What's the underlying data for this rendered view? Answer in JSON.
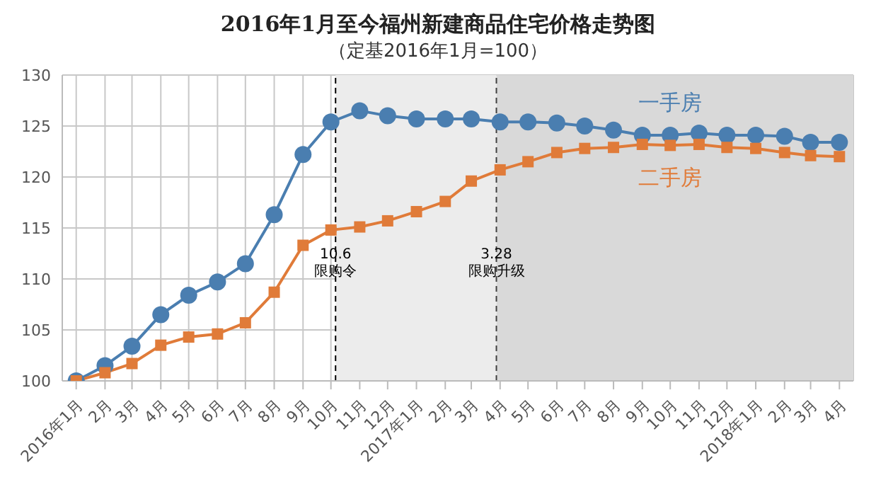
{
  "chart_data": {
    "type": "line",
    "title": "2016年1月至今福州新建商品住宅价格走势图",
    "subtitle": "（定基2016年1月=100）",
    "x": [
      "2016-01",
      "2016-02",
      "2016-03",
      "2016-04",
      "2016-05",
      "2016-06",
      "2016-07",
      "2016-08",
      "2016-09",
      "2016-10",
      "2016-11",
      "2016-12",
      "2017-01",
      "2017-02",
      "2017-03",
      "2017-04",
      "2017-05",
      "2017-06",
      "2017-07",
      "2017-08",
      "2017-09",
      "2017-10",
      "2017-11",
      "2017-12",
      "2018-01",
      "2018-02",
      "2018-03",
      "2018-04"
    ],
    "series": [
      {
        "name": "一手房",
        "color": "#4a7eb0",
        "marker": "circle",
        "values": [
          100,
          101.5,
          103.4,
          106.5,
          108.4,
          109.7,
          111.5,
          116.3,
          122.2,
          125.4,
          126.5,
          126.0,
          125.7,
          125.7,
          125.7,
          125.4,
          125.4,
          125.3,
          125.0,
          124.6,
          124.1,
          124.1,
          124.3,
          124.1,
          124.1,
          124.0,
          123.4,
          123.4
        ]
      },
      {
        "name": "二手房",
        "color": "#e07b39",
        "marker": "square",
        "values": [
          100,
          100.8,
          101.7,
          103.5,
          104.3,
          104.6,
          105.7,
          108.7,
          113.3,
          114.8,
          115.1,
          115.7,
          116.6,
          117.6,
          119.6,
          120.7,
          121.5,
          122.4,
          122.8,
          122.9,
          123.2,
          123.1,
          123.2,
          122.9,
          122.8,
          122.4,
          122.1,
          122.0
        ]
      }
    ],
    "xlim": [
      "2015-12-17",
      "2018-04-16"
    ],
    "xticks": [
      {
        "value": "2016-01",
        "label": "2016年1月"
      },
      {
        "value": "2016-02",
        "label": "2月"
      },
      {
        "value": "2016-03",
        "label": "3月"
      },
      {
        "value": "2016-04",
        "label": "4月"
      },
      {
        "value": "2016-05",
        "label": "5月"
      },
      {
        "value": "2016-06",
        "label": "6月"
      },
      {
        "value": "2016-07",
        "label": "7月"
      },
      {
        "value": "2016-08",
        "label": "8月"
      },
      {
        "value": "2016-09",
        "label": "9月"
      },
      {
        "value": "2016-10",
        "label": "10月"
      },
      {
        "value": "2016-11",
        "label": "11月"
      },
      {
        "value": "2016-12",
        "label": "12月"
      },
      {
        "value": "2017-01",
        "label": "2017年1月"
      },
      {
        "value": "2017-02",
        "label": "2月"
      },
      {
        "value": "2017-03",
        "label": "3月"
      },
      {
        "value": "2017-04",
        "label": "4月"
      },
      {
        "value": "2017-05",
        "label": "5月"
      },
      {
        "value": "2017-06",
        "label": "6月"
      },
      {
        "value": "2017-07",
        "label": "7月"
      },
      {
        "value": "2017-08",
        "label": "8月"
      },
      {
        "value": "2017-09",
        "label": "9月"
      },
      {
        "value": "2017-10",
        "label": "10月"
      },
      {
        "value": "2017-11",
        "label": "11月"
      },
      {
        "value": "2017-12",
        "label": "12月"
      },
      {
        "value": "2018-01",
        "label": "2018年1月"
      },
      {
        "value": "2018-02",
        "label": "2月"
      },
      {
        "value": "2018-03",
        "label": "3月"
      },
      {
        "value": "2018-04",
        "label": "4月"
      }
    ],
    "ylim": [
      100,
      130
    ],
    "yticks": [
      100,
      105,
      110,
      115,
      120,
      125,
      130
    ],
    "grid": true,
    "legend": false,
    "bands": [
      {
        "axis": "x",
        "from": "2016-10-06",
        "to": "2017-03-28",
        "color": "#ececec"
      },
      {
        "axis": "x",
        "from": "2017-03-28",
        "to": "2018-04-16",
        "color": "#d9d9d9"
      }
    ],
    "ref_lines": [
      {
        "axis": "x",
        "value": "2016-10-06",
        "label": "10.6\n限购令",
        "line_style": "dashed",
        "color": "#000000"
      },
      {
        "axis": "x",
        "value": "2017-03-28",
        "label": "3.28\n限购升级",
        "line_style": "dashed",
        "color": "#404040"
      }
    ]
  }
}
